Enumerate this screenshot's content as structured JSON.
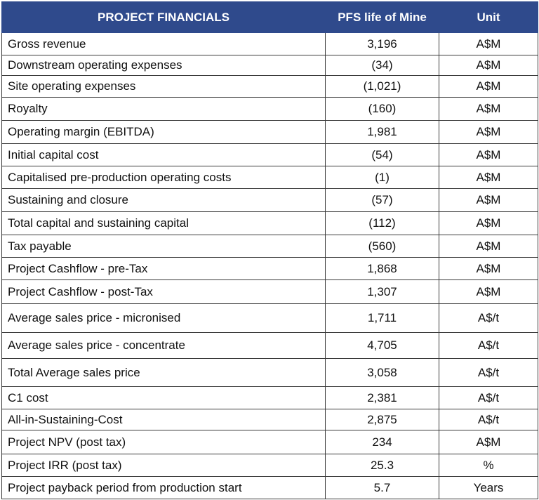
{
  "table": {
    "header": [
      "PROJECT FINANCIALS",
      "PFS life of Mine",
      "Unit"
    ],
    "rows": [
      [
        "Gross revenue",
        "3,196",
        "A$M"
      ],
      [
        "Downstream operating expenses",
        "(34)",
        "A$M"
      ],
      [
        "Site operating expenses",
        "(1,021)",
        "A$M"
      ],
      [
        "Royalty",
        "(160)",
        "A$M"
      ],
      [
        "Operating margin (EBITDA)",
        "1,981",
        "A$M"
      ],
      [
        "Initial capital cost",
        "(54)",
        "A$M"
      ],
      [
        "Capitalised pre-production operating costs",
        "(1)",
        "A$M"
      ],
      [
        "Sustaining and closure",
        "(57)",
        "A$M"
      ],
      [
        "Total capital and sustaining capital",
        "(112)",
        "A$M"
      ],
      [
        "Tax payable",
        "(560)",
        "A$M"
      ],
      [
        "Project Cashflow - pre-Tax",
        "1,868",
        "A$M"
      ],
      [
        "Project Cashflow - post-Tax",
        "1,307",
        "A$M"
      ],
      [
        "Average sales price - micronised",
        "1,711",
        "A$/t"
      ],
      [
        "Average sales price - concentrate",
        "4,705",
        "A$/t"
      ],
      [
        "Total Average sales price",
        "3,058",
        "A$/t"
      ],
      [
        "C1 cost",
        "2,381",
        "A$/t"
      ],
      [
        "All-in-Sustaining-Cost",
        "2,875",
        "A$/t"
      ],
      [
        "Project NPV (post tax)",
        "234",
        "A$M"
      ],
      [
        "Project IRR (post tax)",
        "25.3",
        "%"
      ],
      [
        "Project payback period from production start",
        "5.7",
        "Years"
      ]
    ]
  }
}
